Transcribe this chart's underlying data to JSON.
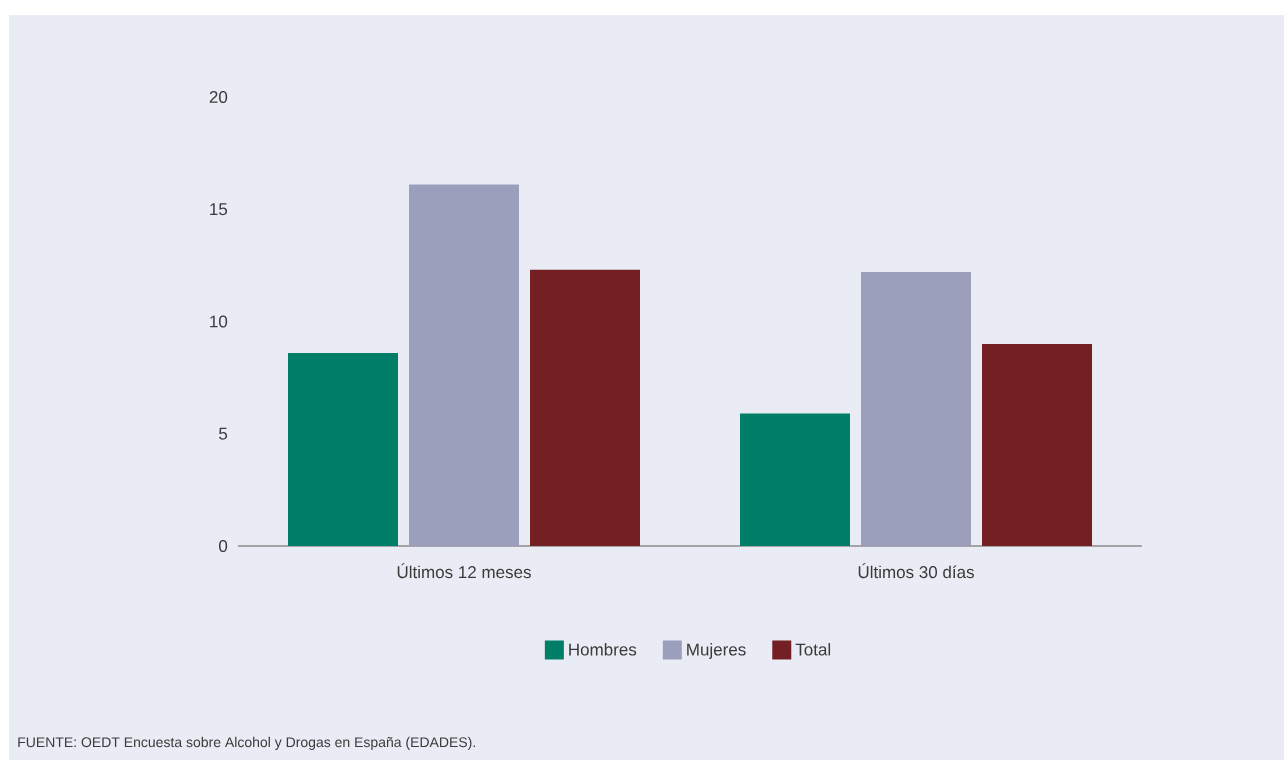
{
  "chart_data": {
    "type": "bar",
    "categories": [
      "Últimos 12 meses",
      "Últimos 30 días"
    ],
    "series": [
      {
        "name": "Hombres",
        "color": "#007e67",
        "values": [
          8.6,
          5.9
        ]
      },
      {
        "name": "Mujeres",
        "color": "#9b9fbb",
        "values": [
          16.1,
          12.2
        ]
      },
      {
        "name": "Total",
        "color": "#741f23",
        "values": [
          12.3,
          9.0
        ]
      }
    ],
    "ylim": [
      0,
      20
    ],
    "yticks": [
      0,
      5,
      10,
      15,
      20
    ],
    "legend": "bottom",
    "annotations": [
      "FUENTE: OEDT Encuesta sobre Alcohol y Drogas en España (EDADES)."
    ]
  }
}
